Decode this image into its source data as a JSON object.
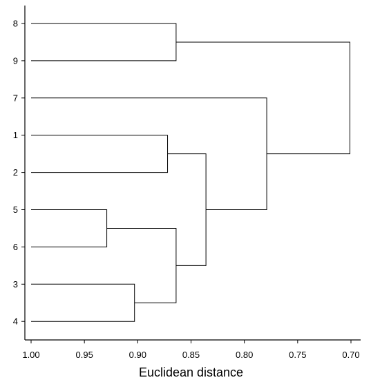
{
  "chart_data": {
    "type": "dendrogram",
    "xlabel": "Euclidean distance",
    "x_axis": {
      "range": [
        1.0,
        0.7
      ],
      "reversed": true,
      "ticks": [
        "1.00",
        "0.95",
        "0.90",
        "0.85",
        "0.80",
        "0.75",
        "0.70"
      ],
      "tick_values": [
        1.0,
        0.95,
        0.9,
        0.85,
        0.8,
        0.75,
        0.7
      ]
    },
    "leaf_order": [
      "8",
      "9",
      "7",
      "1",
      "2",
      "5",
      "6",
      "3",
      "4"
    ],
    "merges": [
      {
        "id": "a",
        "children": [
          "5",
          "6"
        ],
        "height": 0.929
      },
      {
        "id": "b",
        "children": [
          "3",
          "4"
        ],
        "height": 0.903
      },
      {
        "id": "c",
        "children": [
          "1",
          "2"
        ],
        "height": 0.872
      },
      {
        "id": "d",
        "children": [
          "8",
          "9"
        ],
        "height": 0.864
      },
      {
        "id": "e",
        "children": [
          "a",
          "b"
        ],
        "height": 0.864
      },
      {
        "id": "f",
        "children": [
          "c",
          "e"
        ],
        "height": 0.836
      },
      {
        "id": "g",
        "children": [
          "7",
          "f"
        ],
        "height": 0.779
      },
      {
        "id": "h",
        "children": [
          "d",
          "g"
        ],
        "height": 0.701
      }
    ],
    "grid": false,
    "colors": {
      "lines": "#000000",
      "background": "#ffffff"
    }
  }
}
